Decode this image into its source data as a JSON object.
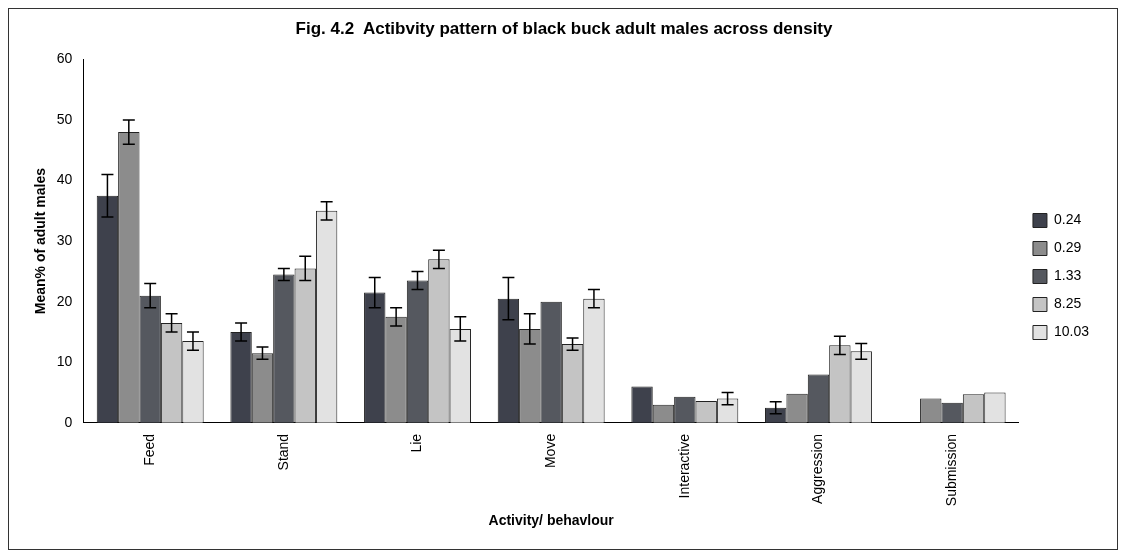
{
  "chart_data": {
    "type": "bar",
    "title": "Fig. 4.2  Actibvity pattern of black buck adult males across density",
    "xlabel": "Activity/ behavlour",
    "ylabel": "Mean% of adult males",
    "categories": [
      "Feed",
      "Stand",
      "Lie",
      "Move",
      "Interactive",
      "Aggression",
      "Submission"
    ],
    "series": [
      {
        "name": "0.24",
        "color": "#3e414c",
        "values": [
          37.5,
          15,
          21.5,
          20.5,
          6,
          2.5,
          0
        ],
        "errors": [
          3.5,
          1.5,
          2.5,
          3.5,
          null,
          1,
          null
        ]
      },
      {
        "name": "0.29",
        "color": "#8c8c8c",
        "values": [
          48,
          11.5,
          17.5,
          15.5,
          3,
          4.8,
          4
        ],
        "errors": [
          2,
          1,
          1.5,
          2.5,
          null,
          null,
          null
        ]
      },
      {
        "name": "1.33",
        "color": "#55585f",
        "values": [
          21,
          24.5,
          23.5,
          20,
          4.3,
          8,
          3.3
        ],
        "errors": [
          2,
          1,
          1.5,
          null,
          null,
          null,
          null
        ]
      },
      {
        "name": "8.25",
        "color": "#c4c4c4",
        "values": [
          16.5,
          25.5,
          27,
          13,
          3.6,
          12.8,
          4.7
        ],
        "errors": [
          1.5,
          2,
          1.5,
          1,
          null,
          1.5,
          null
        ]
      },
      {
        "name": "10.03",
        "color": "#e2e2e2",
        "values": [
          13.5,
          35,
          15.5,
          20.5,
          4,
          11.8,
          5
        ],
        "errors": [
          1.5,
          1.5,
          2,
          1.5,
          1,
          1.3,
          null
        ]
      }
    ],
    "ylim": [
      0,
      60
    ],
    "yticks": [
      0,
      10,
      20,
      30,
      40,
      50,
      60
    ],
    "grid": false,
    "legend": "right"
  }
}
